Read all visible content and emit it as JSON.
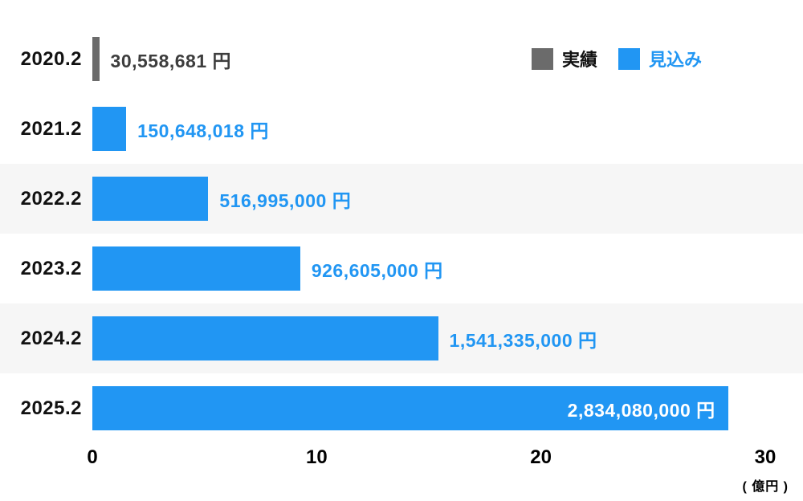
{
  "legend": {
    "actual_label": "実績",
    "forecast_label": "見込み"
  },
  "colors": {
    "actual": "#6b6b6b",
    "forecast": "#2196f3",
    "actual_text": "#3d3d3d",
    "forecast_text": "#2196f3",
    "inside_text": "#ffffff",
    "stripe": "#f6f6f6"
  },
  "axis": {
    "unit": "( 億円 )"
  },
  "chart_data": {
    "type": "bar",
    "orientation": "horizontal",
    "title": "",
    "xlabel": "億円",
    "ylabel": "",
    "xlim": [
      0,
      30
    ],
    "x_ticks": [
      0,
      10,
      20,
      30
    ],
    "x_unit": "( 億円 )",
    "grid": false,
    "legend_position": "top-right",
    "categories": [
      "2020.2",
      "2021.2",
      "2022.2",
      "2023.2",
      "2024.2",
      "2025.2"
    ],
    "values_yen": [
      30558681,
      150648018,
      516995000,
      926605000,
      1541335000,
      2834080000
    ],
    "values_oku": [
      0.30558681,
      1.50648018,
      5.16995,
      9.26605,
      15.41335,
      28.3408
    ],
    "labels": [
      "30,558,681 円",
      "150,648,018 円",
      "516,995,000 円",
      "926,605,000 円",
      "1,541,335,000 円",
      "2,834,080,000 円"
    ],
    "series_by_row": [
      "actual",
      "forecast",
      "forecast",
      "forecast",
      "forecast",
      "forecast"
    ],
    "label_inside": [
      false,
      false,
      false,
      false,
      false,
      true
    ],
    "series": [
      {
        "name": "実績",
        "color": "#6b6b6b",
        "rows": [
          "2020.2"
        ]
      },
      {
        "name": "見込み",
        "color": "#2196f3",
        "rows": [
          "2021.2",
          "2022.2",
          "2023.2",
          "2024.2",
          "2025.2"
        ]
      }
    ]
  }
}
